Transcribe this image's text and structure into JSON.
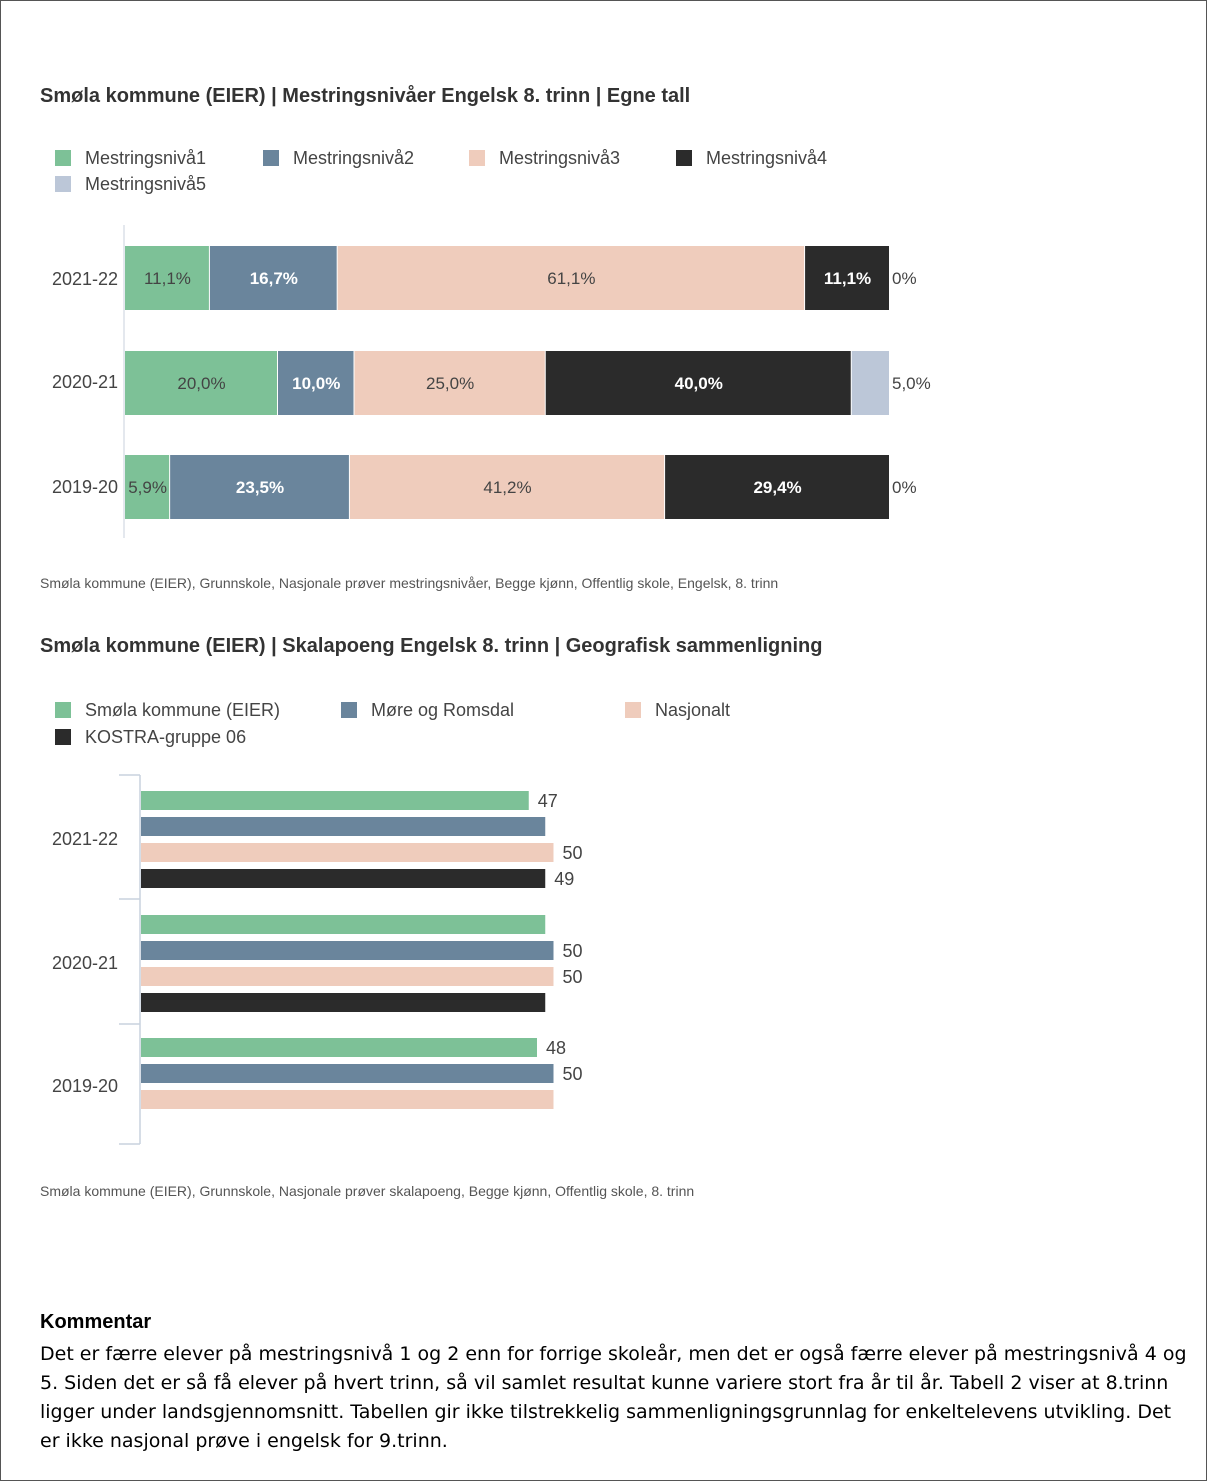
{
  "chart_data": [
    {
      "type": "bar",
      "orientation": "horizontal",
      "stacked": true,
      "title": "Smøla kommune (EIER) | Mestringsnivåer Engelsk 8. trinn | Egne tall",
      "legend_position": "top-left",
      "categories": [
        "2021-22",
        "2020-21",
        "2019-20"
      ],
      "series": [
        {
          "name": "Mestringsnivå1",
          "color": "#7dc197",
          "values": [
            11.1,
            20.0,
            5.9
          ],
          "labels": [
            "11,1%",
            "20,0%",
            "5,9%"
          ]
        },
        {
          "name": "Mestringsnivå2",
          "color": "#6a859c",
          "values": [
            16.7,
            10.0,
            23.5
          ],
          "labels": [
            "16,7%",
            "10,0%",
            "23,5%"
          ]
        },
        {
          "name": "Mestringsnivå3",
          "color": "#efccbc",
          "values": [
            61.1,
            25.0,
            41.2
          ],
          "labels": [
            "61,1%",
            "25,0%",
            "41,2%"
          ]
        },
        {
          "name": "Mestringsnivå4",
          "color": "#2b2b2b",
          "values": [
            11.1,
            40.0,
            29.4
          ],
          "labels": [
            "11,1%",
            "40,0%",
            "29,4%"
          ]
        },
        {
          "name": "Mestringsnivå5",
          "color": "#bcc7d8",
          "values": [
            0.0,
            5.0,
            0.0
          ],
          "labels": [
            "0%",
            "5,0%",
            "0%"
          ]
        }
      ],
      "source": "Smøla kommune (EIER), Grunnskole, Nasjonale prøver mestringsnivåer, Begge kjønn, Offentlig skole, Engelsk, 8. trinn"
    },
    {
      "type": "bar",
      "orientation": "horizontal",
      "stacked": false,
      "title": "Smøla kommune (EIER) | Skalapoeng Engelsk 8. trinn | Geografisk sammenligning",
      "legend_position": "top-left",
      "categories": [
        "2021-22",
        "2020-21",
        "2019-20"
      ],
      "series": [
        {
          "name": "Smøla kommune (EIER)",
          "color": "#7dc197",
          "values": [
            47,
            49,
            48
          ],
          "labels": [
            "47",
            "",
            "48"
          ]
        },
        {
          "name": "Møre og Romsdal",
          "color": "#6a859c",
          "values": [
            49,
            50,
            50
          ],
          "labels": [
            "",
            "50",
            "50"
          ]
        },
        {
          "name": "Nasjonalt",
          "color": "#efccbc",
          "values": [
            50,
            50,
            50
          ],
          "labels": [
            "50",
            "50",
            ""
          ]
        },
        {
          "name": "KOSTRA-gruppe 06",
          "color": "#2b2b2b",
          "values": [
            49,
            49,
            null
          ],
          "labels": [
            "49",
            "",
            ""
          ]
        }
      ],
      "source": "Smøla kommune (EIER), Grunnskole, Nasjonale prøver skalapoeng, Begge kjønn, Offentlig skole, 8. trinn"
    }
  ],
  "comment": {
    "heading": "Kommentar",
    "text": "Det er færre elever på mestringsnivå 1 og 2 enn for forrige skoleår, men det er også færre elever på mestringsnivå 4 og 5. Siden det er så få elever på hvert trinn, så vil samlet resultat kunne variere stort fra år til år. Tabell 2 viser at 8.trinn ligger under landsgjennomsnitt. Tabellen gir ikke tilstrekkelig sammenligningsgrunnlag for enkeltelevens utvikling. Det er ikke nasjonal prøve i engelsk for 9.trinn."
  }
}
